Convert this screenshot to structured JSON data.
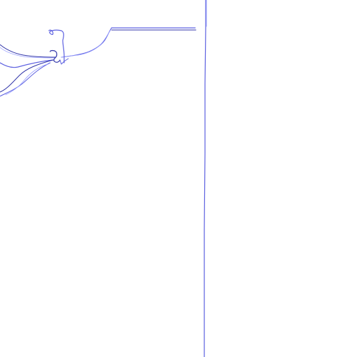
{
  "figure": {
    "colors": {
      "background": "#ffffff",
      "stroke_primary": "#5b5fe0",
      "stroke_secondary": "#2f33a8",
      "stroke_light": "#9aa0ff"
    }
  }
}
